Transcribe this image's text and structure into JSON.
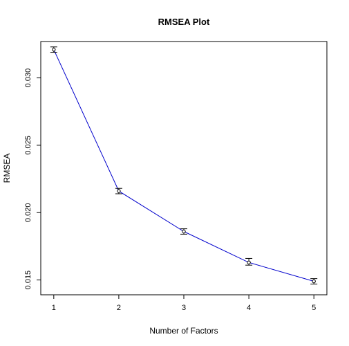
{
  "chart_data": {
    "type": "line",
    "title": "RMSEA Plot",
    "xlabel": "Number of Factors",
    "ylabel": "RMSEA",
    "x": [
      1,
      2,
      3,
      4,
      5
    ],
    "series": [
      {
        "values": [
          0.0321,
          0.0216,
          0.0186,
          0.0163,
          0.0149
        ],
        "error_low": [
          0.0319,
          0.0214,
          0.0184,
          0.0161,
          0.0147
        ],
        "error_high": [
          0.0323,
          0.0218,
          0.0188,
          0.0166,
          0.0151
        ],
        "color": "#0000cc",
        "marker_color": "#000000"
      }
    ],
    "xticks": [
      "1",
      "2",
      "3",
      "4",
      "5"
    ],
    "yticks": [
      "0.015",
      "0.020",
      "0.025",
      "0.030"
    ],
    "xlim": [
      0.8,
      5.2
    ],
    "ylim": [
      0.0139,
      0.0327
    ],
    "grid": false,
    "legend": "none"
  }
}
